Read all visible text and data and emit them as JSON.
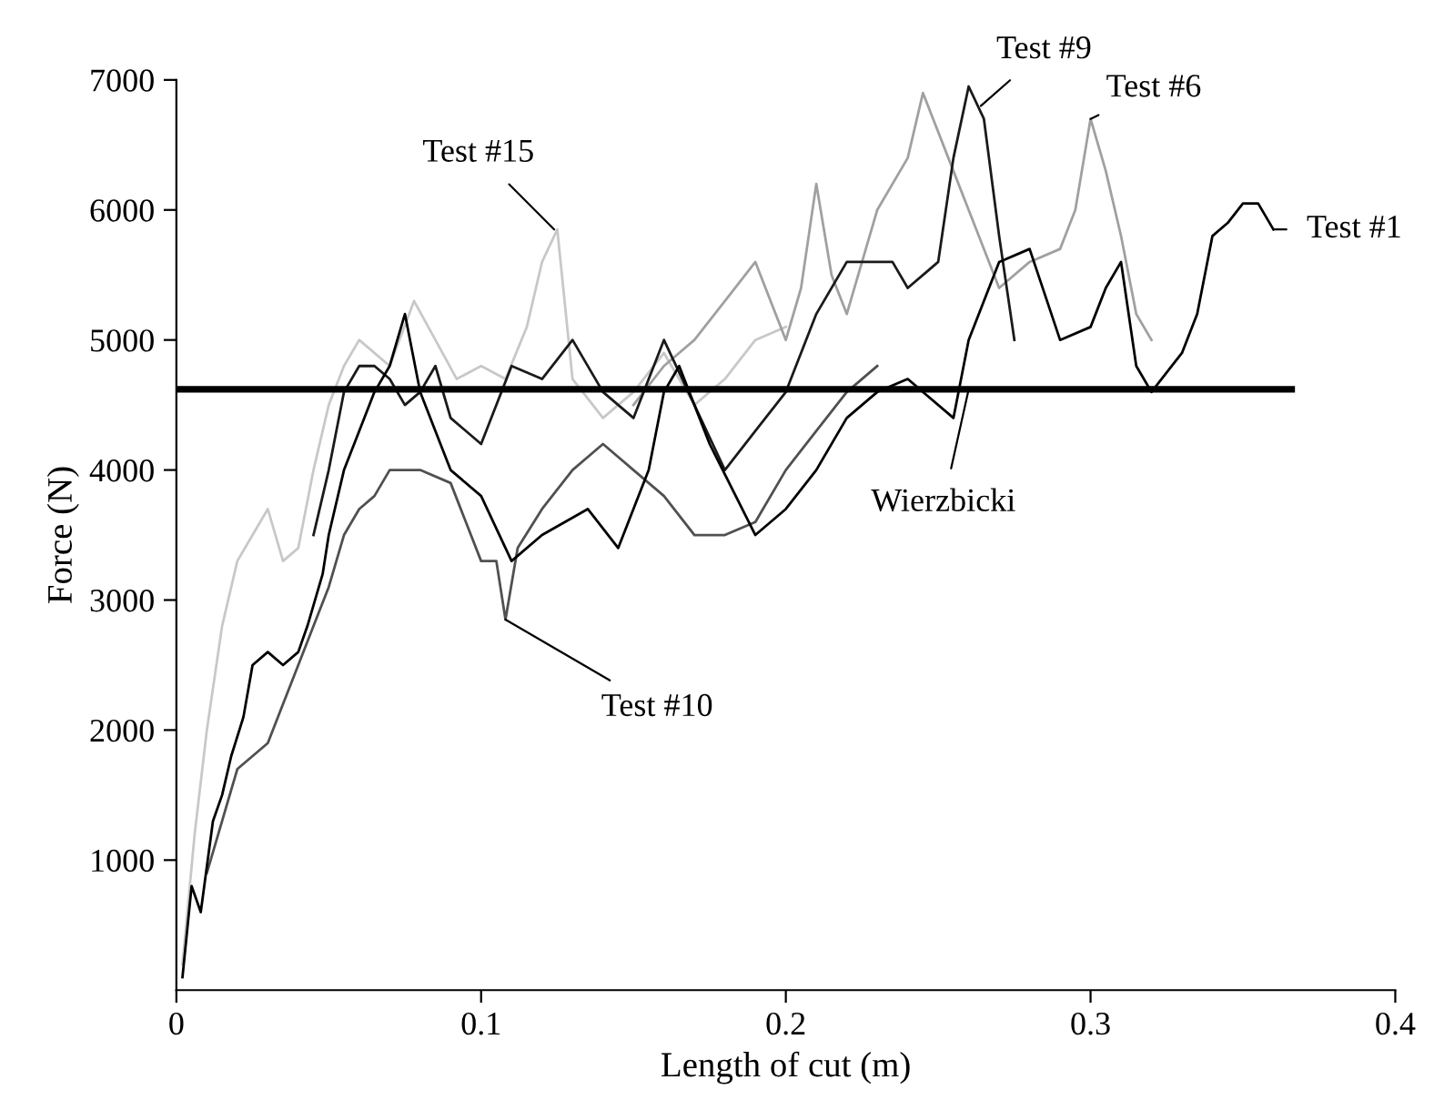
{
  "chart_data": {
    "type": "line",
    "xlabel": "Length of cut (m)",
    "ylabel": "Force (N)",
    "xlim": [
      0,
      0.4
    ],
    "xticks": [
      0,
      0.1,
      0.2,
      0.3,
      0.4
    ],
    "ylim": [
      0,
      7000
    ],
    "yticks": [
      1000,
      2000,
      3000,
      4000,
      5000,
      6000,
      7000
    ],
    "grid": false,
    "legend": false,
    "series": [
      {
        "color": "#c8c8c8",
        "x": [
          0.002,
          0.006,
          0.01,
          0.015,
          0.02,
          0.025,
          0.03,
          0.035,
          0.04,
          0.045,
          0.05,
          0.055,
          0.06,
          0.07,
          0.078,
          0.085,
          0.092,
          0.1,
          0.108,
          0.115,
          0.12,
          0.125,
          0.13,
          0.14,
          0.15,
          0.16,
          0.17,
          0.18,
          0.19,
          0.2
        ],
        "values": [
          200,
          1200,
          2000,
          2800,
          3300,
          3500,
          3700,
          3300,
          3400,
          4000,
          4500,
          4800,
          5000,
          4800,
          5300,
          5000,
          4700,
          4800,
          4700,
          5100,
          5600,
          5850,
          4700,
          4400,
          4600,
          4900,
          4500,
          4700,
          5000,
          5100
        ]
      },
      {
        "color": "#a0a0a0",
        "x": [
          0.15,
          0.16,
          0.17,
          0.18,
          0.19,
          0.2,
          0.205,
          0.21,
          0.215,
          0.22,
          0.23,
          0.24,
          0.245,
          0.25,
          0.255,
          0.26,
          0.27,
          0.28,
          0.29,
          0.295,
          0.3,
          0.305,
          0.31,
          0.315,
          0.32
        ],
        "values": [
          4500,
          4800,
          5000,
          5300,
          5600,
          5000,
          5400,
          6200,
          5500,
          5200,
          6000,
          6400,
          6900,
          6600,
          6300,
          6000,
          5400,
          5600,
          5700,
          6000,
          6700,
          6300,
          5800,
          5200,
          5000
        ]
      },
      {
        "color": "#1a1a1a",
        "x": [
          0.045,
          0.05,
          0.055,
          0.06,
          0.065,
          0.07,
          0.075,
          0.08,
          0.085,
          0.09,
          0.1,
          0.11,
          0.12,
          0.13,
          0.14,
          0.15,
          0.16,
          0.17,
          0.18,
          0.19,
          0.2,
          0.21,
          0.22,
          0.235,
          0.24,
          0.25,
          0.255,
          0.26,
          0.265,
          0.27,
          0.275
        ],
        "values": [
          3500,
          4000,
          4600,
          4800,
          4800,
          4700,
          4500,
          4600,
          4800,
          4400,
          4200,
          4800,
          4700,
          5000,
          4600,
          4400,
          5000,
          4500,
          4000,
          4300,
          4600,
          5200,
          5600,
          5600,
          5400,
          5600,
          6400,
          6950,
          6700,
          5800,
          5000
        ]
      },
      {
        "color": "#505050",
        "x": [
          0.01,
          0.02,
          0.025,
          0.03,
          0.035,
          0.04,
          0.045,
          0.05,
          0.055,
          0.06,
          0.065,
          0.07,
          0.08,
          0.09,
          0.095,
          0.1,
          0.105,
          0.108,
          0.112,
          0.12,
          0.13,
          0.14,
          0.15,
          0.16,
          0.17,
          0.18,
          0.19,
          0.2,
          0.21,
          0.22,
          0.23
        ],
        "values": [
          900,
          1700,
          1800,
          1900,
          2200,
          2500,
          2800,
          3100,
          3500,
          3700,
          3800,
          4000,
          4000,
          3900,
          3600,
          3300,
          3300,
          2850,
          3400,
          3700,
          4000,
          4200,
          4000,
          3800,
          3500,
          3500,
          3600,
          4000,
          4300,
          4600,
          4800
        ]
      },
      {
        "color": "#000000",
        "x": [
          0.002,
          0.005,
          0.008,
          0.012,
          0.015,
          0.018,
          0.022,
          0.025,
          0.03,
          0.035,
          0.04,
          0.043,
          0.048,
          0.05,
          0.055,
          0.06,
          0.065,
          0.07,
          0.075,
          0.08,
          0.085,
          0.09,
          0.1,
          0.11,
          0.12,
          0.135,
          0.145,
          0.155,
          0.16,
          0.165,
          0.175,
          0.19,
          0.2,
          0.21,
          0.22,
          0.23,
          0.24,
          0.255,
          0.26,
          0.27,
          0.28,
          0.29,
          0.3,
          0.305,
          0.31,
          0.315,
          0.32,
          0.33,
          0.335,
          0.34,
          0.345,
          0.35,
          0.355,
          0.36
        ],
        "values": [
          100,
          800,
          600,
          1300,
          1500,
          1800,
          2100,
          2500,
          2600,
          2500,
          2600,
          2800,
          3200,
          3500,
          4000,
          4300,
          4600,
          4800,
          5200,
          4600,
          4300,
          4000,
          3800,
          3300,
          3500,
          3700,
          3400,
          4000,
          4600,
          4800,
          4200,
          3500,
          3700,
          4000,
          4400,
          4600,
          4700,
          4400,
          5000,
          5600,
          5700,
          5000,
          5100,
          5400,
          5600,
          4800,
          4600,
          4900,
          5200,
          5800,
          5900,
          6050,
          6050,
          5850
        ]
      },
      {
        "color": "#000000",
        "x": [
          0,
          0.366
        ],
        "values": [
          4620,
          4620
        ]
      }
    ],
    "annotations": [
      {
        "text": "Test #15",
        "x": 0.124,
        "y": 5850
      },
      {
        "text": "Test #9",
        "x": 0.264,
        "y": 6800
      },
      {
        "text": "Test #6",
        "x": 0.3,
        "y": 6700
      },
      {
        "text": "Test #1",
        "x": 0.36,
        "y": 5850
      },
      {
        "text": "Wierzbicki",
        "x": 0.26,
        "y": 4620
      },
      {
        "text": "Test #10",
        "x": 0.108,
        "y": 2850
      }
    ]
  }
}
